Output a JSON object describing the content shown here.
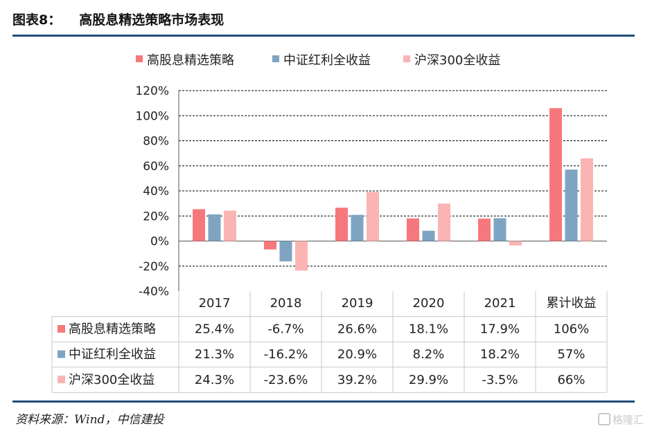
{
  "figure": {
    "number": "图表8：",
    "title": "高股息精选策略市场表现",
    "source": "资料来源：Wind，中信建投",
    "watermark": "格隆汇"
  },
  "colors": {
    "series": [
      "#f7787c",
      "#7ea4c2",
      "#fbb4b4"
    ],
    "rule": "#1f4e79",
    "grid": "#000000"
  },
  "chart_data": {
    "type": "bar",
    "categories": [
      "2017",
      "2018",
      "2019",
      "2020",
      "2021",
      "累计收益"
    ],
    "series": [
      {
        "name": "高股息精选策略",
        "values": [
          25.4,
          -6.7,
          26.6,
          18.1,
          17.9,
          106
        ],
        "labels": [
          "25.4%",
          "-6.7%",
          "26.6%",
          "18.1%",
          "17.9%",
          "106%"
        ]
      },
      {
        "name": "中证红利全收益",
        "values": [
          21.3,
          -16.2,
          20.9,
          8.2,
          18.2,
          57
        ],
        "labels": [
          "21.3%",
          "-16.2%",
          "20.9%",
          "8.2%",
          "18.2%",
          "57%"
        ]
      },
      {
        "name": "沪深300全收益",
        "values": [
          24.3,
          -23.6,
          39.2,
          29.9,
          -3.5,
          66
        ],
        "labels": [
          "24.3%",
          "-23.6%",
          "39.2%",
          "29.9%",
          "-3.5%",
          "66%"
        ]
      }
    ],
    "ylim": [
      -40,
      120
    ],
    "yticks": [
      "-40%",
      "-20%",
      "0%",
      "20%",
      "40%",
      "60%",
      "80%",
      "100%",
      "120%"
    ],
    "grid": "dashed horizontal",
    "legend": "top",
    "data_table": true
  }
}
